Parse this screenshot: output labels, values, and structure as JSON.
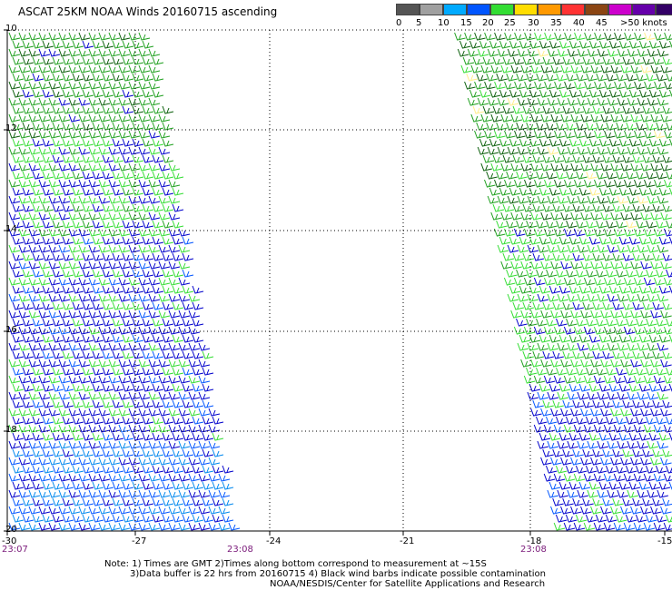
{
  "title": "ASCAT 25KM NOAA Winds 20160715 ascending",
  "legend": {
    "labels": [
      "0",
      "5",
      "10",
      "15",
      "20",
      "25",
      "30",
      "35",
      "40",
      "45",
      ">50 knots"
    ],
    "colors": [
      "#555555",
      "#a0a0a0",
      "#00aaff",
      "#0055ff",
      "#33dd33",
      "#ffdd00",
      "#ff9900",
      "#ff3333",
      "#8b4513",
      "#cc00cc",
      "#6600aa",
      "#330066"
    ]
  },
  "map": {
    "lat_labels": [
      "10",
      "12",
      "14",
      "16",
      "18",
      "20"
    ],
    "lon_labels": [
      "-30",
      "-27",
      "-24",
      "-21",
      "-18",
      "-15"
    ],
    "time_labels": [
      "23:07",
      "23:08",
      "23:08"
    ]
  },
  "notes": [
    "Note: 1) Times are GMT 2)Times along bottom correspond to measurement at ~15S",
    "3)Data buffer is 22 hrs from 20160715 4) Black wind barbs indicate possible contamination",
    "NOAA/NESDIS/Center for Satellite Applications and Research"
  ]
}
